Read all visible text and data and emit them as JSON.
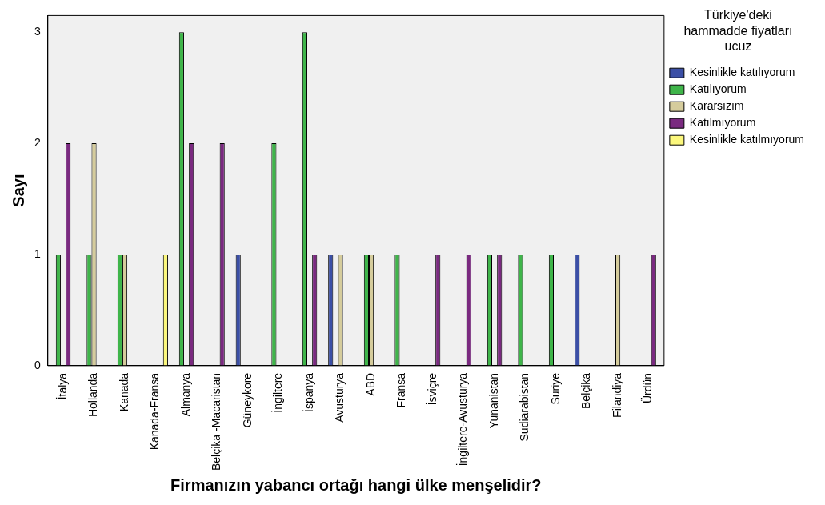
{
  "chart_data": {
    "type": "bar",
    "xlabel": "Firmanızın yabancı ortağı hangi ülke menşelidir?",
    "ylabel": "Sayı",
    "legend_title": "Türkiye'deki hammadde fiyatları ucuz",
    "legend": "right",
    "grid": false,
    "categories": [
      "İtalya",
      "Hollanda",
      "Kanada",
      "Kanada-Fransa",
      "Almanya",
      "Belçika -Macaristan",
      "Güneykore",
      "İngiltere",
      "İspanya",
      "Avusturya",
      "ABD",
      "Fransa",
      "İsviçre",
      "İngiltere-Avusturya",
      "Yunanistan",
      "Sudiarabistan",
      "Suriye",
      "Belçika",
      "Filandiya",
      "Ürdün"
    ],
    "ylim": [
      0,
      3.15
    ],
    "yticks": [
      0,
      1,
      2,
      3
    ],
    "series": [
      {
        "name": "Kesinlikle katılıyorum",
        "color": "#3b4fa6",
        "values": [
          0,
          0,
          0,
          0,
          0,
          0,
          1,
          0,
          0,
          1,
          0,
          0,
          0,
          0,
          0,
          0,
          0,
          1,
          0,
          0
        ]
      },
      {
        "name": "Katılıyorum",
        "color": "#3fb54a",
        "values": [
          1,
          1,
          1,
          0,
          3,
          0,
          0,
          2,
          3,
          0,
          1,
          1,
          0,
          0,
          1,
          1,
          1,
          0,
          0,
          0
        ]
      },
      {
        "name": "Kararsızım",
        "color": "#d5cc9c",
        "values": [
          0,
          2,
          1,
          0,
          0,
          0,
          0,
          0,
          0,
          1,
          1,
          0,
          0,
          0,
          0,
          0,
          0,
          0,
          1,
          0
        ]
      },
      {
        "name": "Katılmıyorum",
        "color": "#7a2a80",
        "values": [
          2,
          0,
          0,
          0,
          2,
          2,
          0,
          0,
          1,
          0,
          0,
          0,
          1,
          1,
          1,
          0,
          0,
          0,
          0,
          1
        ]
      },
      {
        "name": "Kesinlikle katılmıyorum",
        "color": "#fbf77c",
        "values": [
          0,
          0,
          0,
          1,
          0,
          0,
          0,
          0,
          0,
          0,
          0,
          0,
          0,
          0,
          0,
          0,
          0,
          0,
          0,
          0
        ]
      }
    ]
  }
}
